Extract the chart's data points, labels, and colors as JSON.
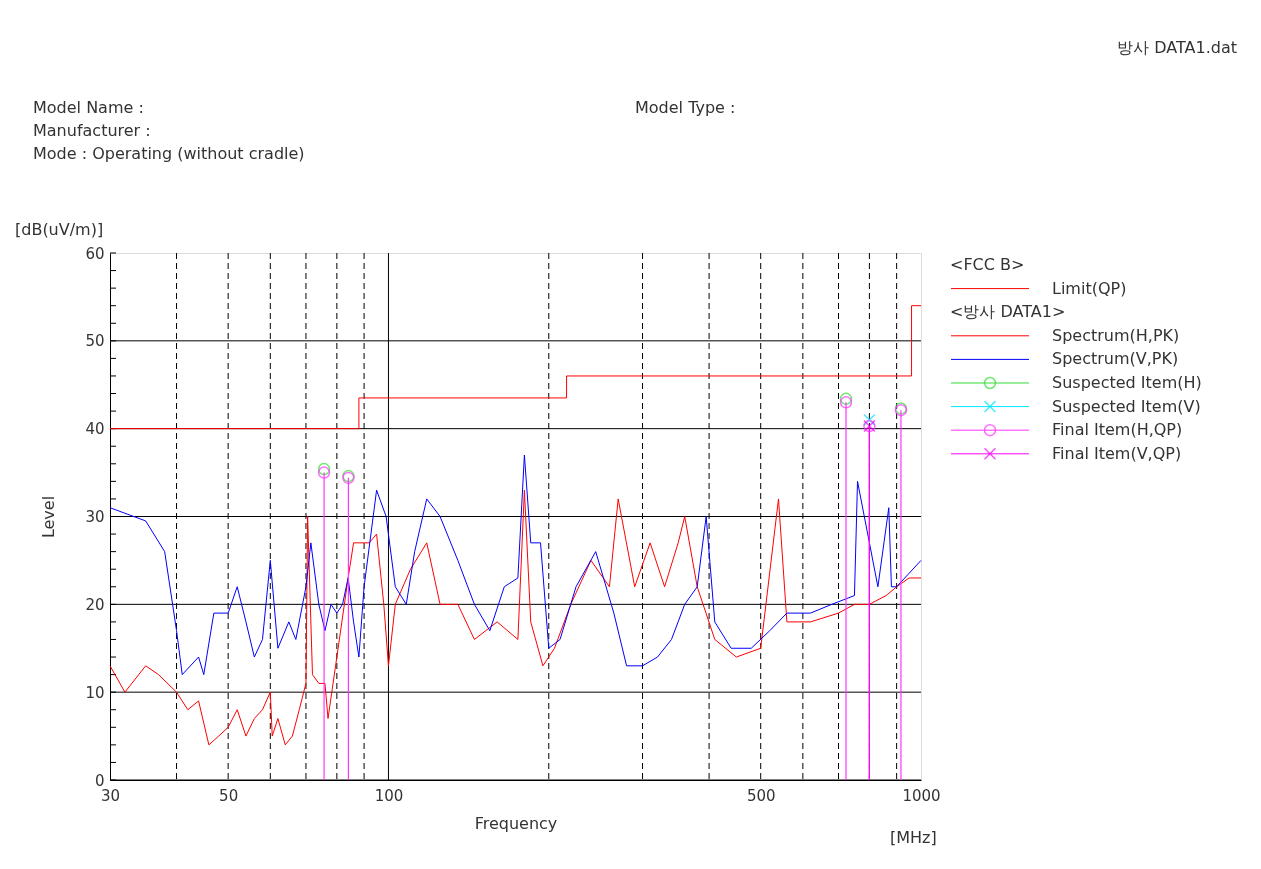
{
  "chart_data": {
    "type": "line",
    "xlabel": "Frequency",
    "ylabel": "Level",
    "annotations": [
      "방사 DATA1.dat",
      "Model Name :",
      "Manufacturer :",
      "Mode : Operating (without cradle)",
      "Model Type :",
      "[dB(uV/m)]",
      "[MHz]",
      "<FCC B>",
      "<방사 DATA1>"
    ],
    "log": "x",
    "grid": true,
    "legend": "right",
    "xlim": [
      30,
      1000
    ],
    "xticks": [
      30,
      {
        "value": 40,
        "label": null
      },
      50,
      {
        "value": 60,
        "label": null
      },
      {
        "value": 70,
        "label": null
      },
      {
        "value": 80,
        "label": null
      },
      {
        "value": 90,
        "label": null
      },
      100,
      {
        "value": 200,
        "label": null
      },
      {
        "value": 300,
        "label": null
      },
      {
        "value": 400,
        "label": null
      },
      500,
      {
        "value": 600,
        "label": null
      },
      {
        "value": 700,
        "label": null
      },
      {
        "value": 800,
        "label": null
      },
      {
        "value": 900,
        "label": null
      },
      1000
    ],
    "ylim": [
      0,
      60
    ],
    "yticks": [
      0,
      {
        "value": 2,
        "label": null
      },
      {
        "value": 4,
        "label": null
      },
      {
        "value": 6,
        "label": null
      },
      {
        "value": 8,
        "label": null
      },
      10,
      {
        "value": 12,
        "label": null
      },
      {
        "value": 14,
        "label": null
      },
      {
        "value": 16,
        "label": null
      },
      {
        "value": 18,
        "label": null
      },
      20,
      {
        "value": 22,
        "label": null
      },
      {
        "value": 24,
        "label": null
      },
      {
        "value": 26,
        "label": null
      },
      {
        "value": 28,
        "label": null
      },
      30,
      {
        "value": 32,
        "label": null
      },
      {
        "value": 34,
        "label": null
      },
      {
        "value": 36,
        "label": null
      },
      {
        "value": 38,
        "label": null
      },
      40,
      {
        "value": 42,
        "label": null
      },
      {
        "value": 44,
        "label": null
      },
      {
        "value": 46,
        "label": null
      },
      {
        "value": 48,
        "label": null
      },
      50,
      {
        "value": 52,
        "label": null
      },
      {
        "value": 54,
        "label": null
      },
      {
        "value": 56,
        "label": null
      },
      {
        "value": 58,
        "label": null
      },
      60
    ],
    "series": [
      {
        "name": "Limit(QP)",
        "type": "step",
        "color": "#ff0000",
        "x": [
          30,
          88,
          216,
          960,
          1000
        ],
        "values": [
          40,
          43.5,
          46,
          54,
          54
        ]
      },
      {
        "name": "Spectrum(H,PK)",
        "color": "#ff0000",
        "x": [
          30,
          32,
          35,
          37,
          40,
          42,
          44,
          46,
          48,
          50,
          52,
          54,
          56,
          58,
          60,
          60.5,
          62,
          64,
          66,
          68,
          70,
          70.5,
          72,
          74,
          76,
          77,
          80,
          84,
          86,
          88,
          92,
          95,
          98,
          100,
          103,
          110,
          118,
          125,
          135,
          145,
          160,
          175,
          180,
          185,
          195,
          205,
          220,
          240,
          260,
          270,
          290,
          310,
          330,
          350,
          360,
          380,
          410,
          450,
          500,
          540,
          560,
          620,
          700,
          750,
          800,
          860,
          900,
          950,
          1000
        ],
        "values": [
          13,
          10,
          13,
          12,
          10,
          8,
          9,
          4,
          5,
          6,
          8,
          5,
          7,
          8,
          10,
          5,
          7,
          4,
          5,
          8,
          11,
          30,
          12,
          11,
          11,
          7,
          14,
          23,
          27,
          27,
          27,
          28,
          20,
          13,
          20,
          24,
          27,
          20,
          20,
          16,
          18,
          16,
          33,
          18,
          13,
          15,
          20,
          25,
          22,
          32,
          22,
          27,
          22,
          27,
          30,
          22,
          16,
          14,
          15,
          32,
          18,
          18,
          19,
          20,
          20,
          21,
          22,
          23,
          23
        ]
      },
      {
        "name": "Spectrum(V,PK)",
        "color": "#0000ff",
        "x": [
          30,
          35,
          38,
          40,
          41,
          44,
          45,
          47,
          50,
          52,
          54,
          56,
          58,
          60,
          62,
          65,
          67,
          70,
          71.5,
          74,
          76,
          78,
          80,
          82,
          84,
          86,
          88,
          90,
          95,
          99,
          103,
          108,
          112,
          118,
          125,
          135,
          145,
          155,
          165,
          175,
          180,
          185,
          193,
          200,
          210,
          225,
          245,
          265,
          280,
          300,
          320,
          340,
          360,
          380,
          395,
          410,
          440,
          480,
          520,
          560,
          620,
          680,
          750,
          760,
          830,
          870,
          880,
          900,
          1000
        ],
        "values": [
          31,
          29.5,
          26,
          17,
          12,
          14,
          12,
          19,
          19,
          22,
          18,
          14,
          16,
          25,
          15,
          18,
          16,
          22,
          27,
          20,
          17,
          20,
          19,
          20,
          23,
          18,
          14,
          22,
          33,
          30,
          22,
          20,
          26,
          32,
          30,
          25,
          20,
          17,
          22,
          23,
          37,
          27,
          27,
          15,
          16,
          22,
          26,
          19,
          13,
          13,
          14,
          16,
          20,
          22,
          30,
          18,
          15,
          15,
          17,
          19,
          19,
          20,
          21,
          34,
          22,
          31,
          22,
          22,
          25
        ]
      },
      {
        "name": "Suspected Item(H)",
        "type": "scatter",
        "marker": "circle",
        "color": "#33dd33",
        "x": [
          75.7,
          84.1,
          723,
          917
        ],
        "values": [
          35.4,
          34.6,
          43.4,
          42.3
        ]
      },
      {
        "name": "Suspected Item(V)",
        "type": "scatter",
        "marker": "cross",
        "color": "#00e5ff",
        "x": [
          800
        ],
        "values": [
          41
        ]
      },
      {
        "name": "Final Item(H,QP)",
        "type": "lollipop",
        "marker": "circle",
        "color": "#ff33ff",
        "x": [
          75.7,
          84.1,
          723,
          800,
          917
        ],
        "values": [
          35,
          34.4,
          43,
          40.3,
          42.1
        ]
      },
      {
        "name": "Final Item(V,QP)",
        "type": "lollipop",
        "marker": "cross",
        "color": "#ff00ff",
        "x": [
          800
        ],
        "values": [
          40.3
        ]
      }
    ]
  }
}
